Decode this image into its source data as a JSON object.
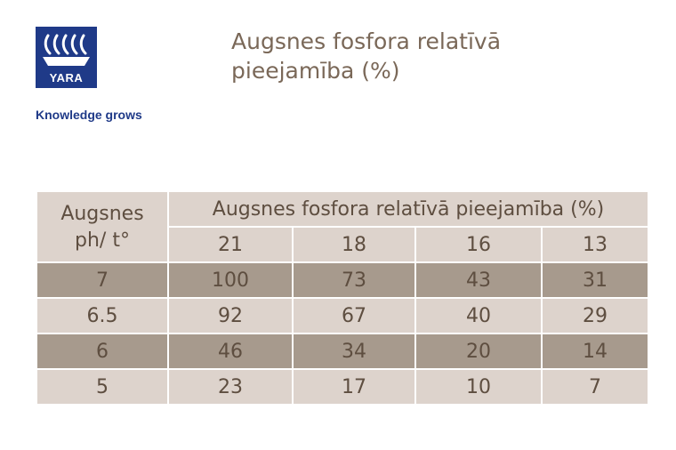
{
  "brand": {
    "name": "YARA",
    "slogan": "Knowledge grows",
    "colors": {
      "logo_blue": "#1f3a88",
      "title_brown": "#7a6858",
      "row_light": "#ddd3cc",
      "row_dark": "#a79a8d"
    }
  },
  "title": "Augsnes fosfora relatīvā pieejamība (%)",
  "chart_data": {
    "type": "table",
    "row_header_label": "Augsnes ph/ t°",
    "column_group_label": "Augsnes fosfora relatīvā pieejamība (%)",
    "columns": [
      "21",
      "18",
      "16",
      "13"
    ],
    "rows": [
      {
        "ph": "7",
        "values": [
          "100",
          "73",
          "43",
          "31"
        ]
      },
      {
        "ph": "6.5",
        "values": [
          "92",
          "67",
          "40",
          "29"
        ]
      },
      {
        "ph": "6",
        "values": [
          "46",
          "34",
          "20",
          "14"
        ]
      },
      {
        "ph": "5",
        "values": [
          "23",
          "17",
          "10",
          "7"
        ]
      }
    ]
  }
}
